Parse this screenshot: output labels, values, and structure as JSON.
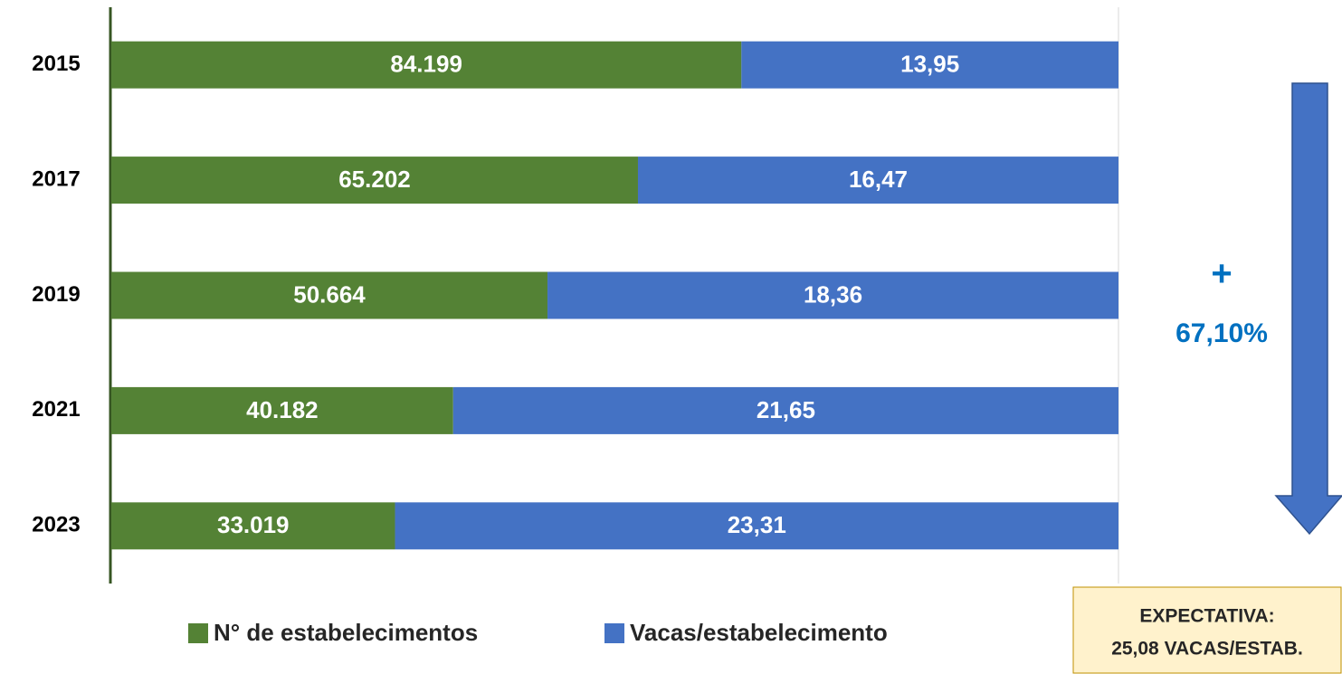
{
  "chart_data": {
    "type": "bar_stacked_normalized",
    "categories": [
      "2015",
      "2017",
      "2019",
      "2021",
      "2023"
    ],
    "series": [
      {
        "name": "N° de estabelecimentos",
        "color": "#548235",
        "values": [
          84199,
          65202,
          50664,
          40182,
          33019
        ],
        "value_labels": [
          "84.199",
          "65.202",
          "50.664",
          "40.182",
          "33.019"
        ]
      },
      {
        "name": "Vacas/estabelecimento",
        "color": "#4472c4",
        "values": [
          13.95,
          16.47,
          18.36,
          21.65,
          23.31
        ],
        "value_labels": [
          "13,95",
          "16,47",
          "18,36",
          "21,65",
          "23,31"
        ]
      }
    ],
    "annotations": {
      "plus": "+",
      "change": "67,10%",
      "box_title": "EXPECTATIVA:",
      "box_text": "25,08 VACAS/ESTAB."
    }
  }
}
